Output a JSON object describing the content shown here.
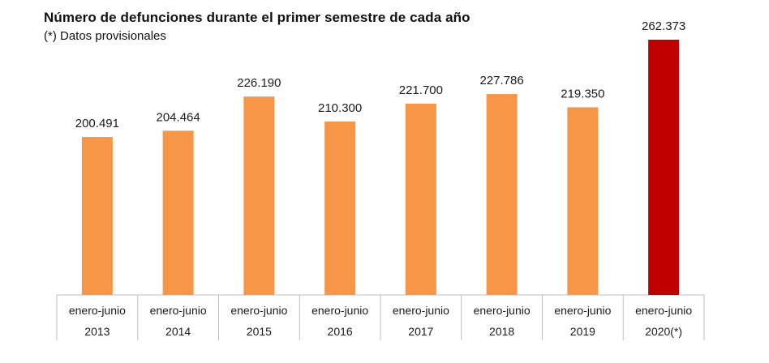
{
  "title": "Número de defunciones durante el primer semestre de cada año",
  "subtitle": "(*) Datos provisionales",
  "colors": {
    "bar": "#f79646",
    "highlight": "#c00000",
    "grid": "#bfbfbf"
  },
  "chart_data": {
    "type": "bar",
    "categories": [
      [
        "enero-junio",
        "2013"
      ],
      [
        "enero-junio",
        "2014"
      ],
      [
        "enero-junio",
        "2015"
      ],
      [
        "enero-junio",
        "2016"
      ],
      [
        "enero-junio",
        "2017"
      ],
      [
        "enero-junio",
        "2018"
      ],
      [
        "enero-junio",
        "2019"
      ],
      [
        "enero-junio",
        "2020(*)"
      ]
    ],
    "values": [
      200491,
      204464,
      226190,
      210300,
      221700,
      227786,
      219350,
      262373
    ],
    "value_labels": [
      "200.491",
      "204.464",
      "226.190",
      "210.300",
      "221.700",
      "227.786",
      "219.350",
      "262.373"
    ],
    "highlight_index": 7,
    "title": "Número de defunciones durante el primer semestre de cada año",
    "subtitle": "(*) Datos provisionales",
    "xlabel": "",
    "ylabel": "",
    "legend": "none",
    "grid": false
  }
}
